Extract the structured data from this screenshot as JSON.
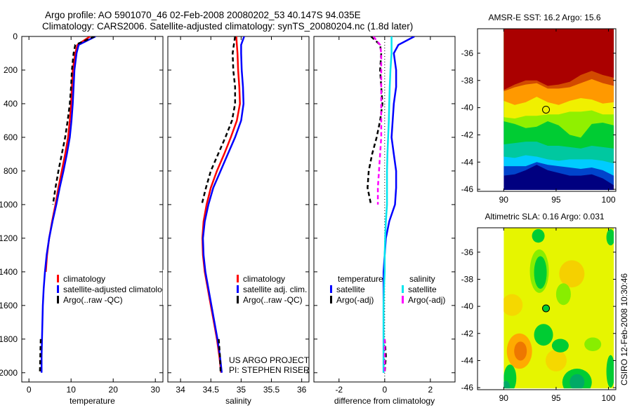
{
  "chart_data": [
    {
      "type": "line",
      "title": [
        "Argo profile: AO 5901070_46 02-Feb-2008 20080202_53 40.147S 94.035E",
        "Climatology: CARS2006. Satellite-adjusted climatology: synTS_20080204.nc (1.8d later)"
      ],
      "xlabel": "temperature",
      "ylabel": "",
      "xlim": [
        -1.7,
        31.8
      ],
      "ylim": [
        0,
        2055
      ],
      "xticks": [
        0,
        10,
        20,
        30
      ],
      "yticks": [
        0,
        200,
        400,
        600,
        800,
        1000,
        1200,
        1400,
        1600,
        1800,
        2000
      ],
      "depth": [
        0,
        50,
        100,
        200,
        300,
        400,
        500,
        600,
        700,
        800,
        900,
        1000,
        1100,
        1200,
        1300,
        1400,
        1500,
        1600,
        1700,
        1800,
        1900,
        2000
      ],
      "series": [
        {
          "name": "climatology",
          "color": "#ff0000",
          "dash": false,
          "values": [
            14.5,
            11.5,
            11.0,
            10.4,
            10.2,
            10.0,
            9.7,
            9.3,
            8.6,
            7.8,
            7.0,
            6.3,
            5.5,
            4.8,
            4.3,
            4.0,
            null,
            null,
            null,
            null,
            null,
            null
          ]
        },
        {
          "name": "satellite-adjusted climatology",
          "color": "#0000ff",
          "dash": false,
          "values": [
            15.8,
            11.8,
            11.3,
            10.8,
            10.6,
            10.4,
            10.1,
            9.7,
            9.0,
            8.2,
            7.3,
            6.5,
            5.6,
            4.8,
            4.2,
            3.8,
            3.5,
            3.3,
            3.2,
            3.1,
            3.0,
            3.0
          ]
        },
        {
          "name": "Argo(..raw -QC)",
          "color": "#000000",
          "dash": true,
          "values": [
            15.6,
            11.0,
            10.6,
            10.2,
            10.0,
            9.7,
            9.2,
            8.6,
            7.8,
            7.0,
            6.3,
            5.7,
            null,
            null,
            null,
            null,
            null,
            null,
            null,
            2.8,
            2.7,
            2.6
          ]
        }
      ],
      "legend": "lower-right"
    },
    {
      "type": "line",
      "xlabel": "salinity",
      "xlim": [
        33.79,
        36.12
      ],
      "ylim": [
        0,
        2055
      ],
      "xticks": [
        34,
        34.5,
        35,
        35.5,
        36
      ],
      "depth": [
        0,
        50,
        100,
        200,
        300,
        400,
        500,
        600,
        700,
        800,
        900,
        1000,
        1100,
        1200,
        1300,
        1400,
        1500,
        1600,
        1700,
        1800,
        1900,
        2000
      ],
      "series": [
        {
          "name": "climatology",
          "color": "#ff0000",
          "dash": false,
          "values": [
            34.92,
            34.93,
            34.94,
            34.95,
            34.97,
            34.98,
            34.93,
            34.83,
            34.72,
            34.6,
            34.5,
            34.43,
            34.38,
            34.36,
            34.37,
            34.4,
            34.45,
            34.5,
            34.55,
            34.6,
            34.64,
            34.67
          ]
        },
        {
          "name": "satellite adj. clim.",
          "color": "#0000ff",
          "dash": false,
          "values": [
            35.05,
            35.0,
            35.0,
            35.01,
            35.03,
            35.04,
            35.0,
            34.9,
            34.78,
            34.66,
            34.54,
            34.46,
            34.4,
            34.37,
            34.38,
            34.41,
            34.46,
            34.51,
            34.56,
            34.61,
            34.65,
            34.68
          ]
        },
        {
          "name": "Argo(..raw -QC)",
          "color": "#000000",
          "dash": true,
          "values": [
            34.9,
            34.88,
            34.86,
            34.87,
            34.9,
            34.9,
            34.85,
            34.74,
            34.62,
            34.5,
            34.42,
            34.35,
            null,
            null,
            null,
            null,
            null,
            null,
            null,
            34.63,
            34.65,
            34.66
          ]
        }
      ],
      "credits": [
        "US ARGO PROJECT",
        "PI: STEPHEN RISER"
      ]
    },
    {
      "type": "line",
      "xlabel": "difference from climatology",
      "xlim": [
        -3.1,
        3.08
      ],
      "ylim": [
        0,
        2055
      ],
      "xticks": [
        -2,
        0,
        2
      ],
      "depth": [
        0,
        50,
        100,
        200,
        300,
        400,
        500,
        600,
        700,
        800,
        900,
        1000,
        1100,
        1200,
        1300,
        1400,
        1500,
        1600,
        1700,
        1800,
        1900,
        2000
      ],
      "legend_headers": [
        "temperature",
        "salinity"
      ],
      "series": [
        {
          "name": "satellite",
          "group": "temperature",
          "color": "#0000ff",
          "dash": false,
          "values": [
            1.3,
            0.6,
            0.4,
            0.5,
            0.5,
            0.4,
            0.35,
            0.3,
            0.4,
            0.5,
            0.5,
            0.45,
            0.2,
            0.05,
            0.0,
            -0.05,
            -0.05,
            -0.05,
            -0.05,
            -0.05,
            -0.05,
            -0.05
          ]
        },
        {
          "name": "Argo(-adj)",
          "group": "temperature",
          "color": "#000000",
          "dash": true,
          "values": [
            -0.6,
            -0.2,
            -0.15,
            -0.2,
            -0.15,
            -0.1,
            -0.2,
            -0.35,
            -0.55,
            -0.7,
            -0.75,
            -0.6,
            null,
            null,
            null,
            null,
            null,
            null,
            null,
            0.0,
            0.05,
            0.0
          ]
        },
        {
          "name": "satellite",
          "group": "salinity",
          "color": "#00e5ee",
          "dash": false,
          "values": [
            0.3,
            0.3,
            0.3,
            0.25,
            0.22,
            0.2,
            0.18,
            0.15,
            0.12,
            0.1,
            0.1,
            0.1,
            0.05,
            0.02,
            0.0,
            0.0,
            -0.03,
            -0.05,
            -0.05,
            -0.05,
            -0.05,
            -0.05
          ]
        },
        {
          "name": "Argo(-adj)",
          "group": "salinity",
          "color": "#ff00ff",
          "dash": true,
          "values": [
            -0.5,
            -0.2,
            -0.15,
            -0.15,
            -0.15,
            -0.15,
            -0.15,
            -0.15,
            -0.2,
            -0.25,
            -0.3,
            -0.3,
            null,
            null,
            null,
            null,
            null,
            null,
            null,
            0.0,
            0.0,
            0.0
          ]
        }
      ]
    },
    {
      "type": "heatmap",
      "title": "AMSR-E SST: 16.2 Argo: 15.6",
      "xlim": [
        87.5,
        100.7
      ],
      "ylim": [
        -46.15,
        -34.2
      ],
      "xticks": [
        90,
        95,
        100
      ],
      "yticks": [
        -36,
        -38,
        -40,
        -42,
        -44,
        -46
      ],
      "argo_position": [
        94.035,
        -40.147
      ],
      "colors": {
        "top": "#aa0000",
        "mid_red": "#d24a00",
        "orange": "#ff9900",
        "yellow": "#f0f000",
        "lime": "#90f000",
        "green": "#00cc33",
        "teal": "#00c8a0",
        "cyan": "#00ccff",
        "blue": "#0044cc",
        "navy": "#000080"
      }
    },
    {
      "type": "heatmap",
      "title": "Altimetric SLA: 0.16 Argo: 0.031",
      "xlim": [
        87.5,
        100.7
      ],
      "ylim": [
        -46.15,
        -34.2
      ],
      "xticks": [
        90,
        95,
        100
      ],
      "yticks": [
        -36,
        -38,
        -40,
        -42,
        -44,
        -46
      ],
      "argo_position": [
        94.035,
        -40.147
      ],
      "colors": {
        "background": "#e6f500",
        "green": "#00cc33",
        "lime": "#88ee00",
        "orange": "#ffaa00",
        "deep_orange": "#ee7700",
        "teal": "#00aa66"
      }
    }
  ],
  "footer": {
    "stamp": "CSIRO 12-Feb-2008 10:30:46"
  }
}
